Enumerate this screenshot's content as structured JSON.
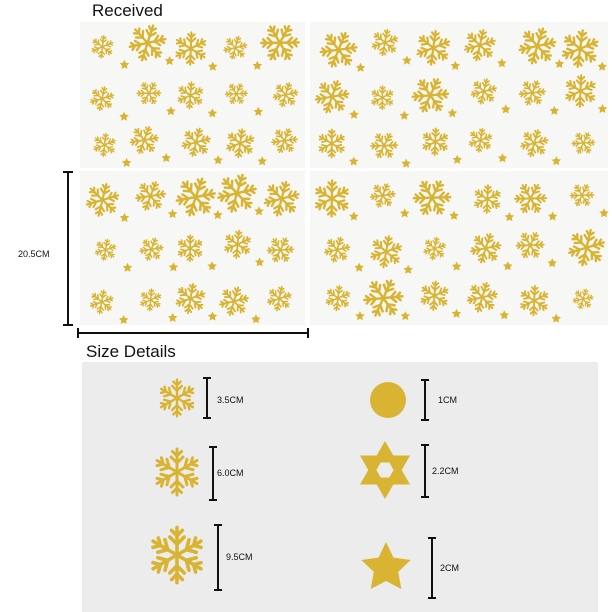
{
  "header": {
    "title": "Received"
  },
  "preview": {
    "height_label": "20.5CM"
  },
  "size_details": {
    "title": "Size Details",
    "items": [
      {
        "shape": "snowflake-small",
        "label": "3.5CM"
      },
      {
        "shape": "snowflake-medium",
        "label": "6.0CM"
      },
      {
        "shape": "snowflake-large",
        "label": "9.5CM"
      },
      {
        "shape": "dot",
        "label": "1CM"
      },
      {
        "shape": "hexagram",
        "label": "2.2CM"
      },
      {
        "shape": "star",
        "label": "2CM"
      }
    ]
  }
}
